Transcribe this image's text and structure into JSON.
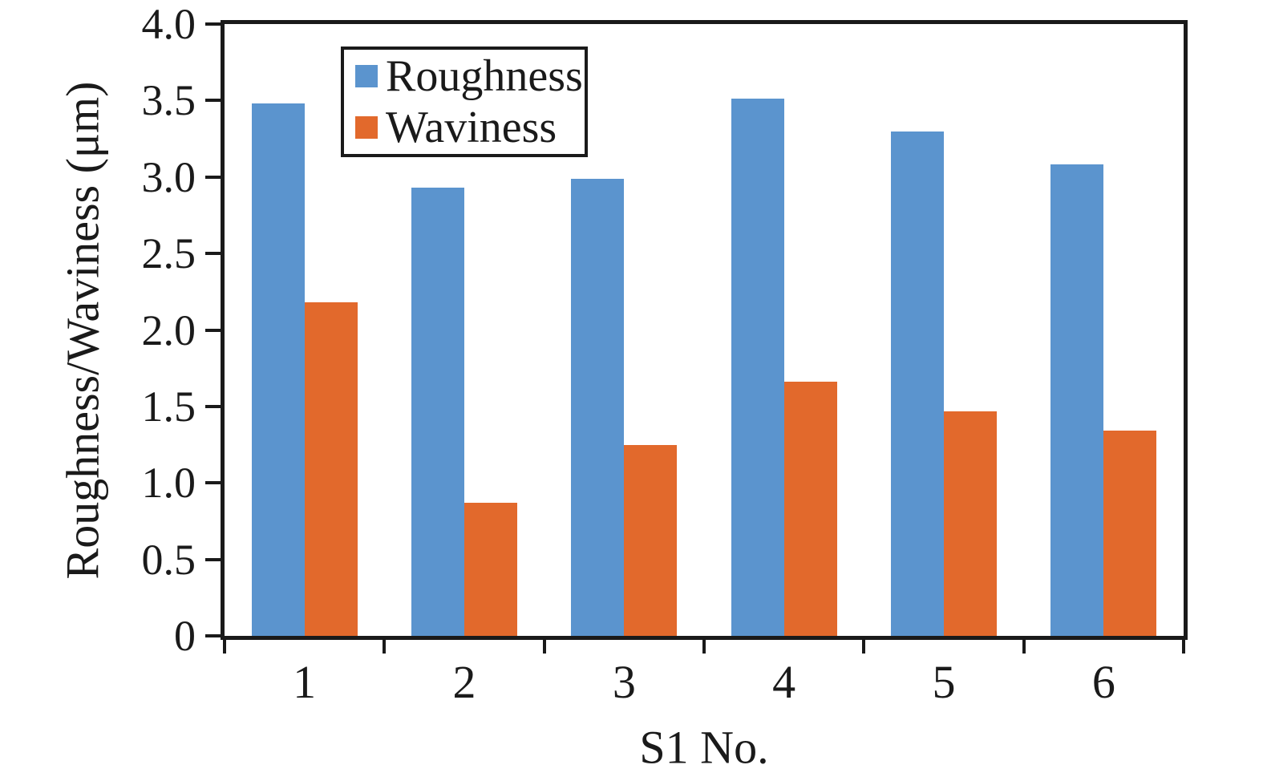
{
  "chart_data": {
    "type": "bar",
    "title": "",
    "xlabel": "S1 No.",
    "ylabel": "Roughness/Waviness (μm)",
    "categories": [
      "1",
      "2",
      "3",
      "4",
      "5",
      "6"
    ],
    "series": [
      {
        "name": "Roughness",
        "color": "#5b94ce",
        "values": [
          3.48,
          2.93,
          2.99,
          3.51,
          3.3,
          3.08
        ]
      },
      {
        "name": "Waviness",
        "color": "#e2692c",
        "values": [
          2.18,
          0.87,
          1.25,
          1.66,
          1.47,
          1.34
        ]
      }
    ],
    "ylim": [
      0,
      4.0
    ],
    "yticks": [
      "4.0",
      "3.5",
      "3.0",
      "2.5",
      "2.0",
      "1.5",
      "1.0",
      "0.5",
      "0"
    ],
    "grid": false,
    "legend_position": "top-left-inside",
    "axis_color": "#1a1a1a"
  }
}
